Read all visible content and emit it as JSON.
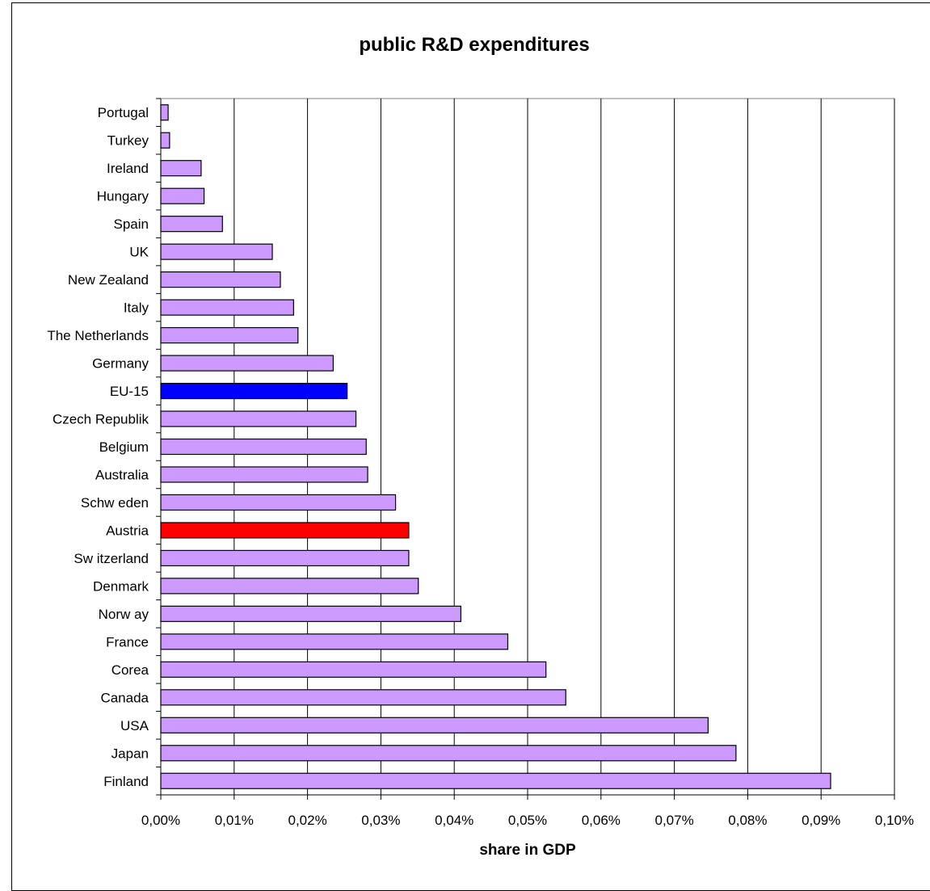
{
  "chart_data": {
    "type": "bar",
    "orientation": "horizontal",
    "title": "public R&D expenditures",
    "xlabel": "share in GDP",
    "ylabel": "",
    "xlim": [
      0,
      0.1
    ],
    "x_unit": "%",
    "x_ticks": [
      "0,00%",
      "0,01%",
      "0,02%",
      "0,03%",
      "0,04%",
      "0,05%",
      "0,06%",
      "0,07%",
      "0,08%",
      "0,09%",
      "0,10%"
    ],
    "grid": "vertical major gridlines",
    "legend": "none",
    "categories": [
      "Portugal",
      "Turkey",
      "Ireland",
      "Hungary",
      "Spain",
      "UK",
      "New Zealand",
      "Italy",
      "The Netherlands",
      "Germany",
      "EU-15",
      "Czech Republik",
      "Belgium",
      "Australia",
      "Schw eden",
      "Austria",
      "Sw itzerland",
      "Denmark",
      "Norw ay",
      "France",
      "Corea",
      "Canada",
      "USA",
      "Japan",
      "Finland"
    ],
    "values": [
      0.001,
      0.0012,
      0.0055,
      0.0059,
      0.0084,
      0.0152,
      0.0163,
      0.0181,
      0.0187,
      0.0235,
      0.0254,
      0.0266,
      0.028,
      0.0282,
      0.032,
      0.0338,
      0.0338,
      0.0351,
      0.0409,
      0.0473,
      0.0525,
      0.0552,
      0.0746,
      0.0784,
      0.0913
    ],
    "colors": {
      "default": "#cc99ff",
      "highlight": {
        "EU-15": "#0000ff",
        "Austria": "#ff0000"
      },
      "bar_border": "#000000",
      "gridline": "#000000"
    }
  }
}
